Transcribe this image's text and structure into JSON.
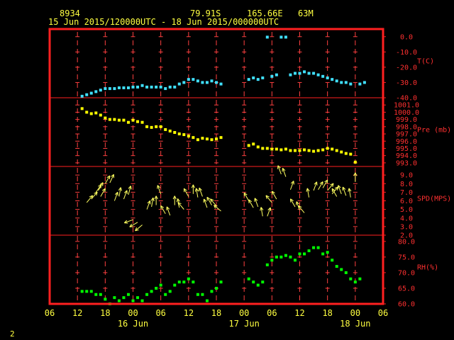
{
  "header": {
    "station_id": "8934",
    "latitude": "79.91S",
    "longitude": "165.66E",
    "elevation": "63M",
    "time_range": "15 Jun 2015/120000UTC - 18 Jun 2015/000000UTC"
  },
  "footer": {
    "page_number": "2"
  },
  "colors": {
    "background": "#000000",
    "frame": "#ff2020",
    "ticks": "#ff4040",
    "axis_text": "#ff3030",
    "header_text": "#ffff40",
    "temperature": "#40e0ff",
    "pressure": "#ffff00",
    "wind": "#ffff60",
    "humidity": "#00ff00"
  },
  "chart_data": {
    "type": "scatter",
    "x_axis": {
      "unit": "hours since 15 Jun 2015 00 UTC",
      "range": [
        6,
        78
      ],
      "tick_labels": [
        "06",
        "12",
        "18",
        "00",
        "06",
        "12",
        "18",
        "00",
        "06",
        "12",
        "18",
        "00",
        "06"
      ],
      "tick_values": [
        6,
        12,
        18,
        24,
        30,
        36,
        42,
        48,
        54,
        60,
        66,
        72,
        78
      ],
      "day_labels": [
        {
          "text": "16 Jun",
          "x": 24
        },
        {
          "text": "17 Jun",
          "x": 48
        },
        {
          "text": "18 Jun",
          "x": 72
        }
      ]
    },
    "panels": [
      {
        "name": "temperature",
        "label": "T(C)",
        "range": [
          -40,
          5
        ],
        "ticks": [
          {
            "v": 0,
            "label": "0.0"
          },
          {
            "v": -10,
            "label": "-10.0"
          },
          {
            "v": -20,
            "label": "-20.0"
          },
          {
            "v": -30,
            "label": "-30.0"
          },
          {
            "v": -40,
            "label": "-40.0"
          }
        ],
        "series": [
          {
            "color_key": "temperature",
            "x": [
              13,
              14,
              15,
              16,
              17,
              18,
              19,
              20,
              21,
              22,
              23,
              24,
              25,
              26,
              27,
              28,
              29,
              30,
              31,
              32,
              33,
              34,
              35,
              36,
              37,
              38,
              39,
              40,
              41,
              42,
              43,
              49,
              50,
              51,
              52,
              53,
              54,
              55,
              56,
              57,
              58,
              59,
              60,
              61,
              62,
              63,
              64,
              65,
              66,
              67,
              68,
              69,
              70,
              71
            ],
            "y": [
              -39,
              -38,
              -37,
              -36,
              -35,
              -34,
              -34,
              -34,
              -33.5,
              -33.5,
              -33.5,
              -33,
              -33,
              -32,
              -33,
              -33,
              -33,
              -33,
              -34,
              -33,
              -33,
              -31,
              -30,
              -28,
              -28,
              -29,
              -30,
              -30,
              -29,
              -30,
              -31,
              -28,
              -27,
              -28,
              -27,
              -0.3,
              -26,
              -25,
              -0.3,
              -0.3,
              -25,
              -24,
              -24,
              -23,
              -24,
              -24,
              -25,
              -26,
              -27,
              -28,
              -29,
              -30,
              -30,
              -31
            ]
          },
          {
            "color_key": "temperature",
            "x": [
              73,
              74
            ],
            "y": [
              -31,
              -30
            ]
          }
        ]
      },
      {
        "name": "pressure",
        "label": "Pre (mb)",
        "range": [
          992.5,
          1002
        ],
        "ticks": [
          {
            "v": 1001,
            "label": "1001.0"
          },
          {
            "v": 1000,
            "label": "1000.0"
          },
          {
            "v": 999,
            "label": "999.0"
          },
          {
            "v": 998,
            "label": "998.0"
          },
          {
            "v": 997,
            "label": "997.0"
          },
          {
            "v": 996,
            "label": "996.0"
          },
          {
            "v": 995,
            "label": "995.0"
          },
          {
            "v": 994,
            "label": "994.0"
          },
          {
            "v": 993,
            "label": "993.0"
          }
        ],
        "series": [
          {
            "color_key": "pressure",
            "x": [
              13,
              14,
              15,
              16,
              17,
              18,
              19,
              20,
              21,
              22,
              23,
              24,
              25,
              26,
              27,
              28,
              29,
              30,
              31,
              32,
              33,
              34,
              35,
              36,
              37,
              38,
              39,
              40,
              41,
              42,
              43,
              49,
              50,
              51,
              52,
              53,
              54,
              55,
              56,
              57,
              58,
              59,
              60,
              61,
              62,
              63,
              64,
              65,
              66,
              67,
              68,
              69,
              70,
              71,
              72
            ],
            "y": [
              1000.5,
              1000,
              999.8,
              999.9,
              999.6,
              999.2,
              999,
              999,
              998.9,
              998.9,
              998.6,
              998.9,
              998.7,
              998.6,
              998,
              997.9,
              998,
              998,
              997.6,
              997.4,
              997.2,
              997,
              996.9,
              996.7,
              996.5,
              996.2,
              996.4,
              996.3,
              996.2,
              996.3,
              996.5,
              995.4,
              995.6,
              995.2,
              995,
              995,
              994.9,
              994.9,
              994.8,
              994.9,
              994.7,
              994.7,
              994.7,
              994.8,
              994.7,
              994.6,
              994.7,
              994.8,
              995,
              994.9,
              994.7,
              994.5,
              994.3,
              994.2,
              993.1
            ]
          }
        ]
      },
      {
        "name": "wind_speed",
        "label": "SPD(MPS)",
        "range": [
          2,
          10
        ],
        "ticks": [
          {
            "v": 9,
            "label": "9.0"
          },
          {
            "v": 8,
            "label": "8.0"
          },
          {
            "v": 7,
            "label": "7.0"
          },
          {
            "v": 6,
            "label": "6.0"
          },
          {
            "v": 5,
            "label": "5.0"
          },
          {
            "v": 4,
            "label": "4.0"
          },
          {
            "v": 3,
            "label": "3.0"
          },
          {
            "v": 2,
            "label": "2.0"
          }
        ],
        "series": [
          {
            "color_key": "wind",
            "x": [
              14,
              15,
              16,
              16.5,
              17,
              18,
              19,
              20,
              21,
              22,
              23,
              24,
              25,
              26,
              27,
              28,
              29,
              30,
              31,
              32,
              33,
              34,
              35,
              36,
              37,
              38,
              39,
              40,
              41,
              42,
              43,
              49,
              50,
              51,
              52,
              53,
              54,
              55,
              56,
              57,
              58,
              59,
              60,
              61,
              62,
              63,
              64,
              65,
              66,
              67,
              68,
              69,
              70,
              71,
              72
            ],
            "y": [
              5.8,
              6.2,
              7,
              7.2,
              6.5,
              8,
              8.1,
              6,
              6.5,
              6.2,
              6.7,
              3.8,
              3.5,
              3.2,
              5,
              5.3,
              5.5,
              6.8,
              4.5,
              4.3,
              5.5,
              5.2,
              5,
              6.5,
              6.8,
              6.4,
              6.5,
              5.2,
              5.5,
              5.4,
              4.8,
              6,
              5.2,
              5.3,
              4.2,
              4.2,
              5.8,
              6.2,
              9.1,
              8.8,
              7.3,
              5.3,
              4.9,
              4.6,
              6.4,
              7.2,
              7.3,
              7.5,
              7.2,
              6.8,
              6.5,
              6.8,
              6.6,
              6.4,
              8.2
            ],
            "direction_deg": [
              40,
              40,
              35,
              30,
              30,
              30,
              25,
              20,
              10,
              20,
              15,
              250,
              240,
              230,
              20,
              10,
              0,
              340,
              330,
              340,
              0,
              350,
              320,
              330,
              0,
              350,
              340,
              340,
              330,
              320,
              310,
              330,
              330,
              340,
              350,
              20,
              320,
              330,
              340,
              340,
              20,
              330,
              340,
              320,
              350,
              20,
              30,
              30,
              40,
              40,
              330,
              340,
              340,
              350,
              0
            ]
          }
        ]
      },
      {
        "name": "humidity",
        "label": "RH(%)",
        "range": [
          60,
          82
        ],
        "ticks": [
          {
            "v": 80,
            "label": "80.0"
          },
          {
            "v": 75,
            "label": "75.0"
          },
          {
            "v": 70,
            "label": "70.0"
          },
          {
            "v": 65,
            "label": "65.0"
          },
          {
            "v": 60,
            "label": "60.0"
          }
        ],
        "series": [
          {
            "color_key": "humidity",
            "x": [
              13,
              14,
              15,
              16,
              17,
              18,
              19,
              20,
              21,
              22,
              23,
              24,
              25,
              26,
              27,
              28,
              29,
              30,
              31,
              32,
              33,
              34,
              35,
              36,
              37,
              38,
              39,
              40,
              41,
              42,
              43,
              49,
              50,
              51,
              52,
              53,
              54,
              55,
              56,
              57,
              58,
              59,
              60,
              61,
              62,
              63,
              64,
              65,
              66,
              67,
              68,
              69,
              70,
              71
            ],
            "y": [
              64,
              64,
              64,
              63,
              63,
              61.5,
              60,
              62,
              61,
              62,
              63,
              61,
              62,
              61,
              63,
              64,
              65,
              66,
              63,
              64,
              66,
              67,
              67,
              68,
              67,
              63,
              63,
              61,
              64,
              65,
              67,
              68,
              67,
              66,
              67,
              72.5,
              74,
              75,
              75,
              75.5,
              75,
              74,
              76,
              76,
              77,
              78,
              78,
              76,
              76.5,
              74,
              72,
              71,
              70,
              68
            ]
          },
          {
            "color_key": "humidity",
            "x": [
              72,
              73
            ],
            "y": [
              67,
              68
            ]
          }
        ]
      }
    ]
  }
}
